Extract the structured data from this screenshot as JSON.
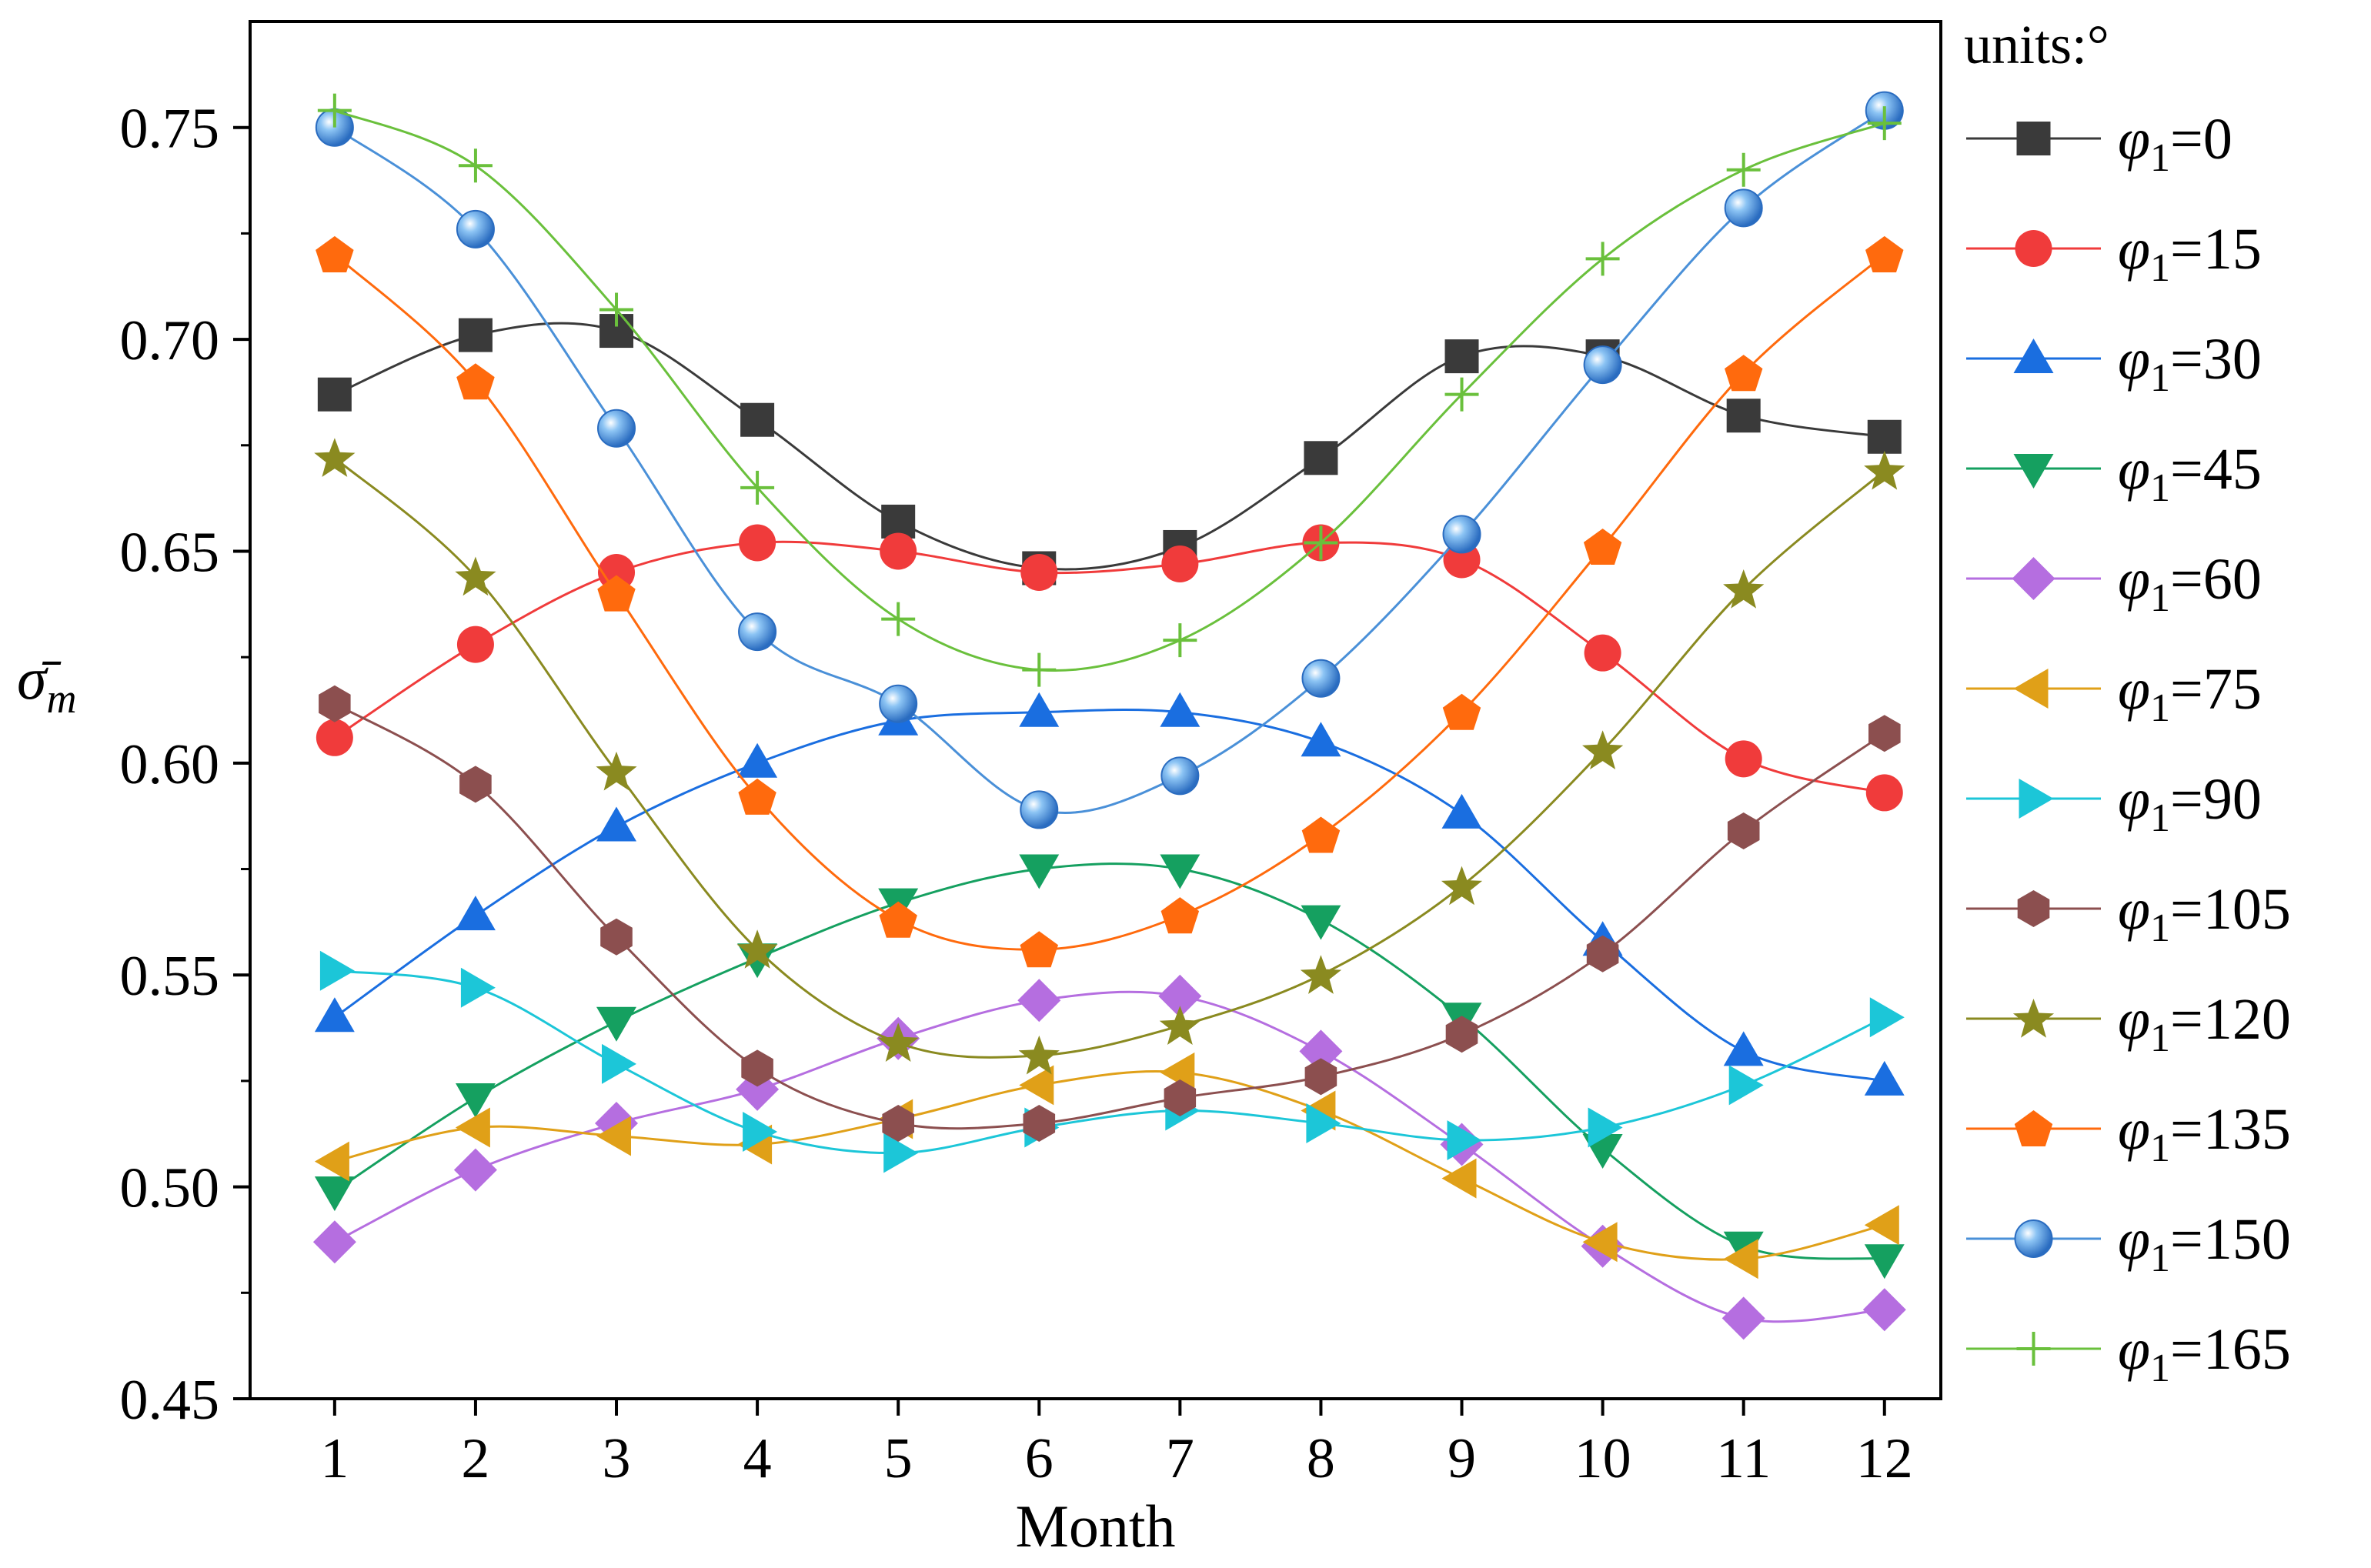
{
  "chart_data": {
    "type": "line",
    "title": "",
    "xlabel": "Month",
    "ylabel": "σ̄",
    "ylabel_subscript": "m",
    "legend_title": "units:°",
    "legend_placement": "right-outside",
    "legend_prefix": "φ",
    "legend_subscript": "1",
    "grid": false,
    "xlim": [
      0.4,
      12.4
    ],
    "ylim": [
      0.45,
      0.775
    ],
    "x": [
      1,
      2,
      3,
      4,
      5,
      6,
      7,
      8,
      9,
      10,
      11,
      12
    ],
    "xticks": [
      "1",
      "2",
      "3",
      "4",
      "5",
      "6",
      "7",
      "8",
      "9",
      "10",
      "11",
      "12"
    ],
    "yticks": [
      0.45,
      0.5,
      0.55,
      0.6,
      0.65,
      0.7,
      0.75
    ],
    "ytick_labels": [
      "0.45",
      "0.50",
      "0.55",
      "0.60",
      "0.65",
      "0.70",
      "0.75"
    ],
    "series": [
      {
        "name": "=0",
        "marker": "square",
        "color": "#3a3a3a",
        "values": [
          0.687,
          0.701,
          0.702,
          0.681,
          0.657,
          0.646,
          0.651,
          0.672,
          0.696,
          0.696,
          0.682,
          0.677
        ]
      },
      {
        "name": "=15",
        "marker": "circle",
        "color": "#f03b3b",
        "values": [
          0.606,
          0.628,
          0.645,
          0.652,
          0.65,
          0.645,
          0.647,
          0.652,
          0.648,
          0.626,
          0.601,
          0.593
        ]
      },
      {
        "name": "=30",
        "marker": "triangle-up",
        "color": "#1a6ee0",
        "values": [
          0.54,
          0.564,
          0.585,
          0.6,
          0.61,
          0.612,
          0.612,
          0.605,
          0.588,
          0.558,
          0.532,
          0.525
        ]
      },
      {
        "name": "=45",
        "marker": "triangle-down",
        "color": "#15a060",
        "values": [
          0.499,
          0.521,
          0.539,
          0.554,
          0.567,
          0.575,
          0.575,
          0.563,
          0.54,
          0.509,
          0.486,
          0.483
        ]
      },
      {
        "name": "=60",
        "marker": "diamond",
        "color": "#b56ee0",
        "values": [
          0.487,
          0.504,
          0.515,
          0.523,
          0.535,
          0.544,
          0.545,
          0.532,
          0.51,
          0.486,
          0.469,
          0.471
        ]
      },
      {
        "name": "=75",
        "marker": "triangle-left",
        "color": "#e0a018",
        "values": [
          0.506,
          0.514,
          0.512,
          0.51,
          0.516,
          0.524,
          0.527,
          0.518,
          0.502,
          0.487,
          0.483,
          0.491
        ]
      },
      {
        "name": "=90",
        "marker": "triangle-right",
        "color": "#1cc6d8",
        "values": [
          0.551,
          0.547,
          0.529,
          0.513,
          0.508,
          0.514,
          0.518,
          0.515,
          0.511,
          0.514,
          0.524,
          0.54
        ]
      },
      {
        "name": "=105",
        "marker": "hexagon",
        "color": "#8c4f4f",
        "values": [
          0.614,
          0.595,
          0.559,
          0.528,
          0.515,
          0.515,
          0.521,
          0.526,
          0.536,
          0.555,
          0.584,
          0.607
        ]
      },
      {
        "name": "=120",
        "marker": "star",
        "color": "#8a8a20",
        "values": [
          0.672,
          0.644,
          0.598,
          0.556,
          0.534,
          0.531,
          0.538,
          0.55,
          0.571,
          0.603,
          0.641,
          0.669
        ]
      },
      {
        "name": "=135",
        "marker": "pentagon",
        "color": "#ff6a0d",
        "values": [
          0.72,
          0.69,
          0.64,
          0.592,
          0.563,
          0.556,
          0.564,
          0.583,
          0.612,
          0.651,
          0.692,
          0.72
        ]
      },
      {
        "name": "=150",
        "marker": "sphere",
        "color": "#4a90d8",
        "values": [
          0.75,
          0.726,
          0.679,
          0.631,
          0.614,
          0.589,
          0.597,
          0.62,
          0.654,
          0.694,
          0.731,
          0.754
        ]
      },
      {
        "name": "=165",
        "marker": "plus",
        "color": "#6ac03c",
        "values": [
          0.754,
          0.741,
          0.707,
          0.665,
          0.634,
          0.622,
          0.629,
          0.652,
          0.687,
          0.719,
          0.74,
          0.751
        ]
      }
    ]
  }
}
